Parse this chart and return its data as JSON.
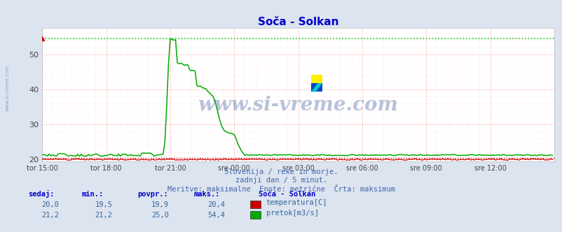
{
  "title": "Soča - Solkan",
  "title_color": "#0000cc",
  "background_color": "#dce4f0",
  "plot_bg_color": "#ffffff",
  "grid_color_major": "#ff9999",
  "grid_color_minor": "#ffdddd",
  "yticks": [
    20,
    30,
    40,
    50
  ],
  "ylim": [
    19.5,
    57.5
  ],
  "xlim": [
    0,
    287
  ],
  "xlabel_ticks": [
    0,
    36,
    72,
    108,
    144,
    180,
    216,
    252
  ],
  "xlabel_labels": [
    "tor 15:00",
    "tor 18:00",
    "tor 21:00",
    "sre 00:00",
    "sre 03:00",
    "sre 06:00",
    "sre 09:00",
    "sre 12:00"
  ],
  "watermark": "www.si-vreme.com",
  "watermark_color": "#1a3a8a",
  "watermark_alpha": 0.3,
  "subtitle1": "Slovenija / reke in morje.",
  "subtitle2": "zadnji dan / 5 minut.",
  "subtitle3": "Meritve: maksimalne  Enote: metrične  Črta: maksimum",
  "subtitle_color": "#4466aa",
  "temp_color": "#cc0000",
  "flow_color": "#00aa00",
  "temp_max_line": 20.4,
  "flow_max_line": 54.4,
  "flow_dotted_color": "#00cc00",
  "temp_dotted_color": "#cc0000",
  "table_header_color": "#0000cc",
  "table_data_color": "#336699",
  "legend_colors": [
    "#cc0000",
    "#00aa00"
  ],
  "legend_labels": [
    "temperatura[C]",
    "pretok[m3/s]"
  ],
  "table_headers": [
    "sedaj:",
    "min.:",
    "povpr.:",
    "maks.:"
  ],
  "table_row1": [
    "20,0",
    "19,5",
    "19,9",
    "20,4"
  ],
  "table_row2": [
    "21,2",
    "21,2",
    "25,0",
    "54,4"
  ],
  "station_label": "Soča - Solkan",
  "n_points": 288
}
